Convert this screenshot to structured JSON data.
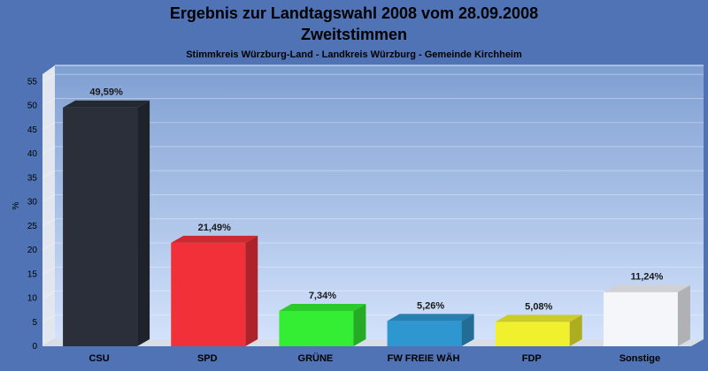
{
  "chart_data": {
    "type": "bar",
    "title": "Ergebnis zur Landtagswahl 2008 vom 28.09.2008",
    "title2": "Zweitstimmen",
    "subtitle": "Stimmkreis Würzburg-Land - Landkreis Würzburg - Gemeinde Kirchheim",
    "ylabel": "%",
    "xlabel": "",
    "ylim": [
      0,
      55
    ],
    "yticks": [
      0,
      5,
      10,
      15,
      20,
      25,
      30,
      35,
      40,
      45,
      50,
      55
    ],
    "grid": true,
    "categories": [
      "CSU",
      "SPD",
      "GRÜNE",
      "FW FREIE WÄH",
      "FDP",
      "Sonstige"
    ],
    "values": [
      49.59,
      21.49,
      7.34,
      5.26,
      5.08,
      11.24
    ],
    "value_labels": [
      "49,59%",
      "21,49%",
      "7,34%",
      "5,26%",
      "5,08%",
      "11,24%"
    ],
    "colors": [
      "#2a2f3a",
      "#f2303a",
      "#33ee33",
      "#2f97cf",
      "#f0f02f",
      "#f4f6fa"
    ]
  }
}
